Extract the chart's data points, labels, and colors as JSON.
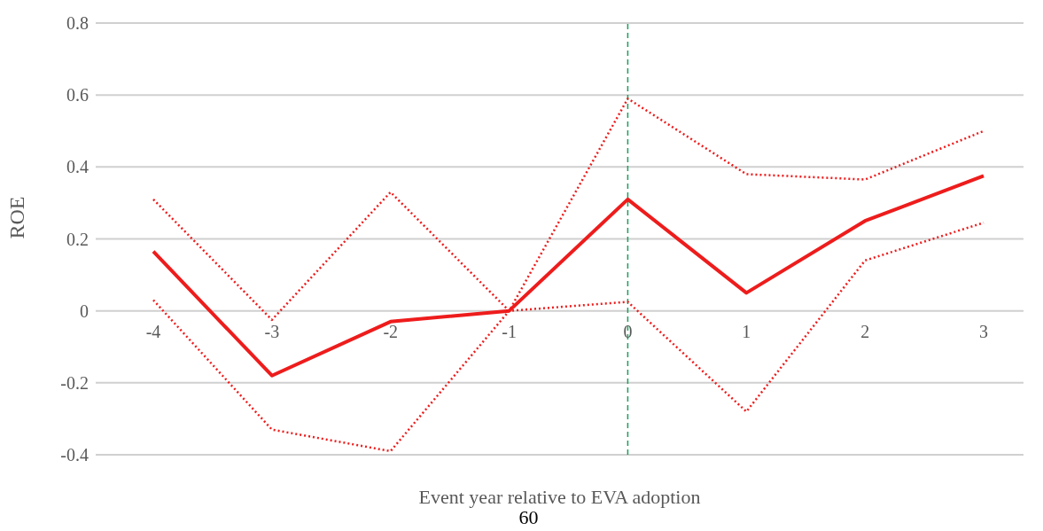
{
  "chart_data": {
    "type": "line",
    "xlabel": "Event year relative  to EVA adoption",
    "ylabel": "ROE",
    "categories": [
      "-4",
      "-3",
      "-2",
      "-1",
      "0",
      "1",
      "2",
      "3"
    ],
    "series": [
      {
        "color": "#ee1c1c",
        "line_style": "solid",
        "values": [
          0.165,
          -0.18,
          -0.03,
          0,
          0.31,
          0.05,
          0.25,
          0.375
        ]
      },
      {
        "color": "#ee1c1c",
        "line_style": "dotted",
        "values": [
          0.31,
          -0.025,
          0.33,
          0,
          0.59,
          0.38,
          0.365,
          0.5
        ]
      },
      {
        "color": "#ee1c1c",
        "line_style": "dotted",
        "values": [
          0.03,
          -0.33,
          -0.39,
          0,
          0.025,
          -0.28,
          0.14,
          0.245
        ]
      }
    ],
    "ylim": [
      -0.4,
      0.8
    ],
    "yticks": [
      -0.4,
      -0.2,
      0,
      0.2,
      0.4,
      0.6,
      0.8
    ],
    "grid": "y",
    "marker": "none",
    "ref_lines": [
      {
        "axis": "x",
        "value": "0",
        "color": "#1aa05a",
        "line_style": "dashed"
      }
    ],
    "annotations": [
      "60"
    ]
  }
}
